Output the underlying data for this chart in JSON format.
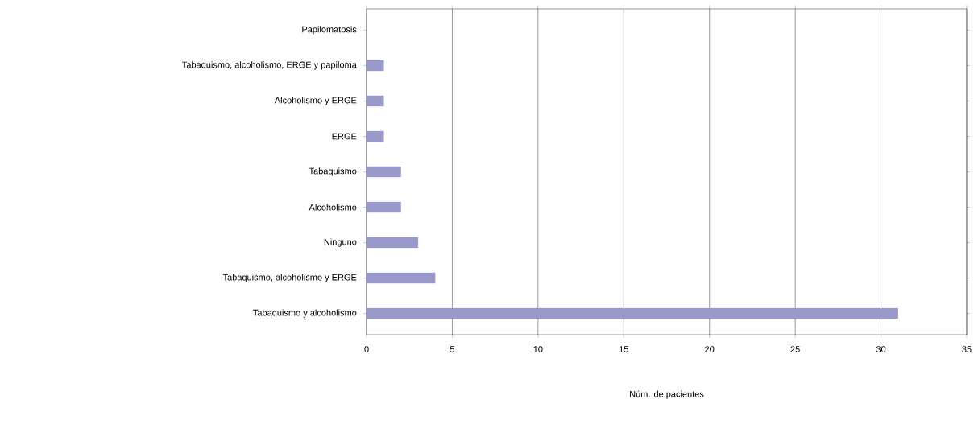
{
  "chart_data": {
    "type": "bar",
    "orientation": "horizontal",
    "categories": [
      "Papilomatosis",
      "Tabaquismo, alcoholismo, ERGE y papiloma",
      "Alcoholismo y ERGE",
      "ERGE",
      "Tabaquismo",
      "Alcoholismo",
      "Ninguno",
      "Tabaquismo, alcoholismo y ERGE",
      "Tabaquismo y alcoholismo"
    ],
    "values": [
      0,
      1,
      1,
      1,
      2,
      2,
      3,
      4,
      31
    ],
    "color": "#9999cc",
    "xlim": [
      0,
      35
    ],
    "xticks": [
      0,
      5,
      10,
      15,
      20,
      25,
      30,
      35
    ],
    "xlabel": "Núm. de pacientes",
    "grid": "x"
  }
}
